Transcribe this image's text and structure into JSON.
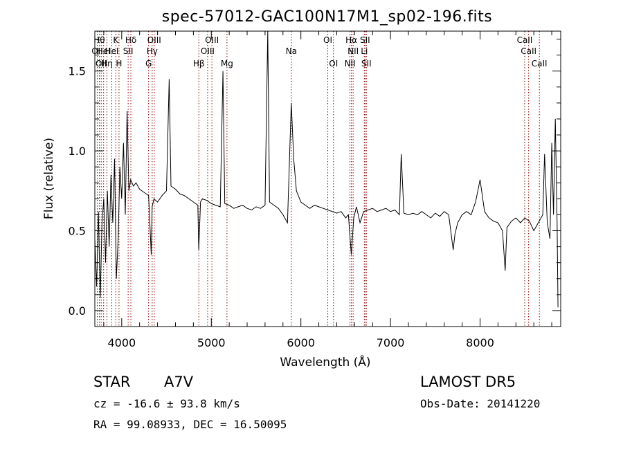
{
  "chart_data": {
    "type": "line",
    "title": "spec-57012-GAC100N17M1_sp02-196.fits",
    "xlabel": "Wavelength (Å)",
    "ylabel": "Flux (relative)",
    "xlim": [
      3700,
      8900
    ],
    "ylim": [
      -0.1,
      1.75
    ],
    "x_ticks": [
      "4000",
      "5000",
      "6000",
      "7000",
      "8000"
    ],
    "y_ticks": [
      "0.0",
      "0.5",
      "1.0",
      "1.5"
    ],
    "grid": false,
    "line_color": "#000000",
    "marker_color": "#8b0000",
    "series": [
      {
        "x": [
          3700,
          3720,
          3740,
          3760,
          3780,
          3800,
          3820,
          3840,
          3860,
          3880,
          3900,
          3920,
          3940,
          3960,
          3980,
          4000,
          4020,
          4040,
          4060,
          4080,
          4100,
          4130,
          4160,
          4200,
          4250,
          4300,
          4330,
          4340,
          4360,
          4400,
          4450,
          4500,
          4530,
          4550,
          4600,
          4650,
          4700,
          4750,
          4800,
          4850,
          4860,
          4880,
          4900,
          4950,
          5000,
          5050,
          5100,
          5130,
          5150,
          5200,
          5250,
          5300,
          5350,
          5400,
          5450,
          5500,
          5550,
          5600,
          5630,
          5650,
          5700,
          5750,
          5800,
          5850,
          5893,
          5920,
          5950,
          6000,
          6050,
          6100,
          6150,
          6200,
          6250,
          6300,
          6350,
          6400,
          6450,
          6500,
          6530,
          6563,
          6590,
          6620,
          6660,
          6700,
          6750,
          6800,
          6850,
          6900,
          6950,
          7000,
          7050,
          7100,
          7120,
          7150,
          7200,
          7250,
          7300,
          7350,
          7400,
          7450,
          7500,
          7550,
          7600,
          7650,
          7700,
          7720,
          7750,
          7800,
          7850,
          7900,
          7950,
          8000,
          8050,
          8100,
          8150,
          8200,
          8250,
          8280,
          8300,
          8350,
          8400,
          8450,
          8500,
          8550,
          8600,
          8650,
          8700,
          8720,
          8750,
          8780,
          8800,
          8820,
          8840,
          8860,
          8870
        ],
        "y": [
          0.45,
          0.15,
          0.62,
          0.08,
          0.55,
          0.7,
          0.3,
          0.75,
          0.4,
          0.85,
          0.55,
          0.95,
          0.2,
          0.45,
          0.9,
          0.7,
          1.05,
          0.6,
          1.25,
          0.75,
          0.82,
          0.78,
          0.8,
          0.76,
          0.74,
          0.72,
          0.35,
          0.65,
          0.7,
          0.68,
          0.72,
          0.75,
          1.45,
          0.78,
          0.76,
          0.73,
          0.72,
          0.7,
          0.68,
          0.66,
          0.38,
          0.68,
          0.7,
          0.69,
          0.67,
          0.66,
          0.65,
          1.5,
          0.67,
          0.66,
          0.64,
          0.65,
          0.66,
          0.64,
          0.63,
          0.65,
          0.64,
          0.66,
          1.75,
          0.68,
          0.66,
          0.64,
          0.6,
          0.55,
          1.3,
          0.95,
          0.75,
          0.68,
          0.66,
          0.64,
          0.66,
          0.65,
          0.64,
          0.63,
          0.62,
          0.61,
          0.62,
          0.58,
          0.6,
          0.35,
          0.58,
          0.65,
          0.55,
          0.62,
          0.63,
          0.64,
          0.62,
          0.63,
          0.64,
          0.62,
          0.63,
          0.6,
          0.98,
          0.61,
          0.6,
          0.61,
          0.6,
          0.62,
          0.6,
          0.58,
          0.61,
          0.59,
          0.62,
          0.6,
          0.38,
          0.48,
          0.55,
          0.6,
          0.62,
          0.6,
          0.68,
          0.82,
          0.62,
          0.58,
          0.56,
          0.55,
          0.5,
          0.25,
          0.52,
          0.56,
          0.58,
          0.55,
          0.58,
          0.56,
          0.5,
          0.55,
          0.6,
          0.98,
          0.55,
          0.45,
          1.05,
          0.6,
          1.2,
          0.55,
          0.02
        ]
      }
    ],
    "line_markers": [
      {
        "wavelength": 3727,
        "label": "OII",
        "row": 2
      },
      {
        "wavelength": 3750,
        "label": "Hθ",
        "row": 1
      },
      {
        "wavelength": 3771,
        "label": "OII",
        "row": 3
      },
      {
        "wavelength": 3798,
        "label": "HeI",
        "row": 2
      },
      {
        "wavelength": 3835,
        "label": "Hη",
        "row": 3
      },
      {
        "wavelength": 3889,
        "label": "HeI",
        "row": 2
      },
      {
        "wavelength": 3934,
        "label": "K",
        "row": 1
      },
      {
        "wavelength": 3970,
        "label": "H",
        "row": 3
      },
      {
        "wavelength": 4072,
        "label": "SII",
        "row": 2
      },
      {
        "wavelength": 4102,
        "label": "Hδ",
        "row": 1
      },
      {
        "wavelength": 4300,
        "label": "G",
        "row": 3
      },
      {
        "wavelength": 4340,
        "label": "Hγ",
        "row": 2
      },
      {
        "wavelength": 4363,
        "label": "OIII",
        "row": 1
      },
      {
        "wavelength": 4861,
        "label": "Hβ",
        "row": 3
      },
      {
        "wavelength": 4959,
        "label": "OIII",
        "row": 2
      },
      {
        "wavelength": 5007,
        "label": "OIII",
        "row": 1
      },
      {
        "wavelength": 5175,
        "label": "Mg",
        "row": 3
      },
      {
        "wavelength": 5893,
        "label": "Na",
        "row": 2
      },
      {
        "wavelength": 6300,
        "label": "OI",
        "row": 1
      },
      {
        "wavelength": 6364,
        "label": "OI",
        "row": 3
      },
      {
        "wavelength": 6548,
        "label": "NII",
        "row": 3
      },
      {
        "wavelength": 6563,
        "label": "Hα",
        "row": 1
      },
      {
        "wavelength": 6583,
        "label": "NII",
        "row": 2
      },
      {
        "wavelength": 6708,
        "label": "Li",
        "row": 2
      },
      {
        "wavelength": 6716,
        "label": "SII",
        "row": 1
      },
      {
        "wavelength": 6731,
        "label": "SII",
        "row": 3
      },
      {
        "wavelength": 8498,
        "label": "CaII",
        "row": 1
      },
      {
        "wavelength": 8542,
        "label": "CaII",
        "row": 2
      },
      {
        "wavelength": 8662,
        "label": "CaII",
        "row": 3
      }
    ]
  },
  "info": {
    "object_class": "STAR",
    "subclass": "A7V",
    "survey": "LAMOST DR5",
    "cz_line": "cz = -16.6 ± 93.8 km/s",
    "obs_date_line": "Obs-Date: 20141220",
    "coords_line": "RA =  99.08933, DEC =  16.50095"
  }
}
